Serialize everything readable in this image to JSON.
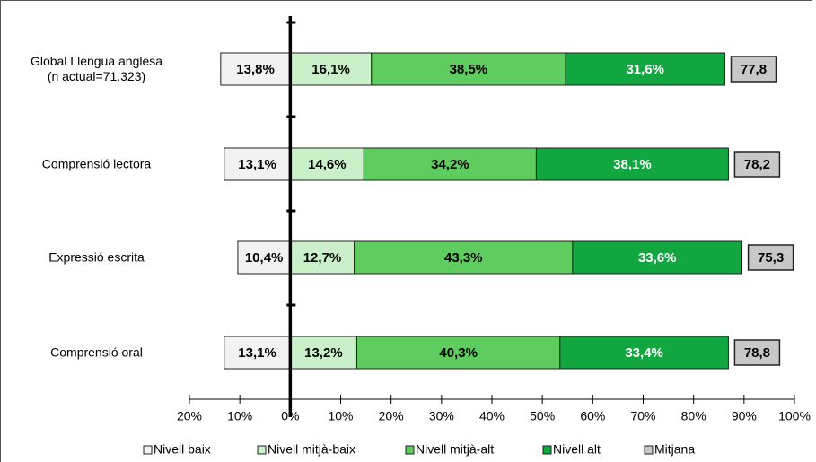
{
  "chart_data": {
    "type": "diverging_bar",
    "categories": [
      "Global Llengua anglesa\n(n actual=71.323)",
      "Comprensió lectora",
      "Expressió escrita",
      "Comprensió oral"
    ],
    "series": [
      {
        "name": "Nivell baix",
        "color": "#f2f2f2",
        "direction": "left",
        "label_color": "#000000",
        "values": [
          13.8,
          13.1,
          10.4,
          13.1
        ],
        "value_labels": [
          "13,8%",
          "13,1%",
          "10,4%",
          "13,1%"
        ]
      },
      {
        "name": "Nivell mitjà-baix",
        "color": "#c9f0c9",
        "direction": "right",
        "label_color": "#000000",
        "values": [
          16.1,
          14.6,
          12.7,
          13.2
        ],
        "value_labels": [
          "16,1%",
          "14,6%",
          "12,7%",
          "13,2%"
        ]
      },
      {
        "name": "Nivell mitjà-alt",
        "color": "#5fcc5f",
        "direction": "right",
        "label_color": "#000000",
        "values": [
          38.5,
          34.2,
          43.3,
          40.3
        ],
        "value_labels": [
          "38,5%",
          "34,2%",
          "43,3%",
          "40,3%"
        ]
      },
      {
        "name": "Nivell alt",
        "color": "#12a640",
        "direction": "right",
        "label_color": "#ffffff",
        "values": [
          31.6,
          38.1,
          33.6,
          33.4
        ],
        "value_labels": [
          "31,6%",
          "38,1%",
          "33,6%",
          "33,4%"
        ]
      },
      {
        "name": "Mitjana",
        "color": "#c8c8c8",
        "direction": "box",
        "label_color": "#000000",
        "values": [
          77.8,
          78.2,
          75.3,
          78.8
        ],
        "value_labels": [
          "77,8",
          "78,2",
          "75,3",
          "78,8"
        ]
      }
    ],
    "xlim": [
      -20,
      100
    ],
    "xticks": [
      {
        "value": -20,
        "label": "20%"
      },
      {
        "value": -10,
        "label": "10%"
      },
      {
        "value": 0,
        "label": "0%"
      },
      {
        "value": 10,
        "label": "10%"
      },
      {
        "value": 20,
        "label": "20%"
      },
      {
        "value": 30,
        "label": "30%"
      },
      {
        "value": 40,
        "label": "40%"
      },
      {
        "value": 50,
        "label": "50%"
      },
      {
        "value": 60,
        "label": "60%"
      },
      {
        "value": 70,
        "label": "70%"
      },
      {
        "value": 80,
        "label": "80%"
      },
      {
        "value": 90,
        "label": "90%"
      },
      {
        "value": 100,
        "label": "100%"
      }
    ]
  }
}
